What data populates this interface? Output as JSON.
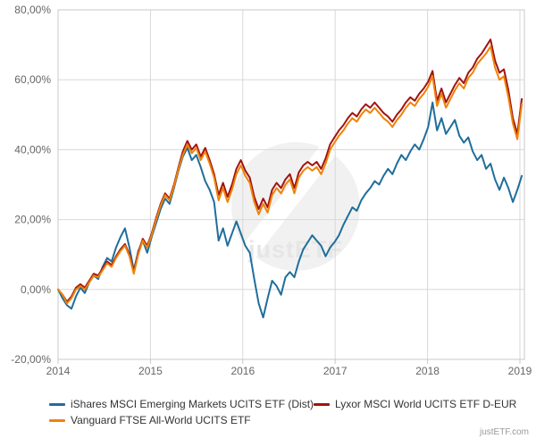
{
  "chart_data": {
    "type": "line",
    "title": "",
    "xlabel": "",
    "ylabel": "",
    "x_start": 2014,
    "x_end": 2019.02,
    "ylim": [
      -20,
      80
    ],
    "grid": true,
    "legend_position": "bottom",
    "y_ticks": [
      {
        "v": 80,
        "label": "80,00%"
      },
      {
        "v": 60,
        "label": "60,00%"
      },
      {
        "v": 40,
        "label": "40,00%"
      },
      {
        "v": 20,
        "label": "20,00%"
      },
      {
        "v": 0,
        "label": "0,00%"
      },
      {
        "v": -20,
        "label": "-20,00%"
      }
    ],
    "x_ticks": [
      {
        "v": 2014,
        "label": "2014"
      },
      {
        "v": 2015,
        "label": "2015"
      },
      {
        "v": 2016,
        "label": "2016"
      },
      {
        "v": 2017,
        "label": "2017"
      },
      {
        "v": 2018,
        "label": "2018"
      },
      {
        "v": 2019,
        "label": "2019"
      }
    ],
    "series": [
      {
        "name": "iShares MSCI Emerging Markets UCITS ETF (Dist)",
        "color": "#1F6E9C",
        "values": [
          0,
          -2.5,
          -4.5,
          -5.5,
          -2,
          0.5,
          -1,
          2,
          4,
          3,
          6.5,
          9,
          8,
          12,
          15,
          17.5,
          12,
          5.5,
          11,
          14,
          10.5,
          15,
          19,
          23,
          26,
          24.5,
          29,
          34,
          38,
          40.5,
          37,
          38.5,
          35,
          31,
          28.5,
          25,
          14,
          17.5,
          12.5,
          16,
          19.5,
          16,
          12.5,
          10.5,
          3,
          -4,
          -8,
          -2.5,
          2.5,
          1,
          -1.5,
          3.5,
          5,
          3.5,
          8,
          11.5,
          13.5,
          15.5,
          14,
          12.5,
          9.5,
          12,
          13.5,
          15.5,
          18.5,
          21,
          23.5,
          22.5,
          25.5,
          27.5,
          29,
          31,
          30,
          32.5,
          34.5,
          33,
          36,
          38.5,
          37,
          39.5,
          41.5,
          40,
          43,
          46.5,
          53.5,
          45.5,
          49,
          44.5,
          46.5,
          48.5,
          44,
          42,
          43.5,
          39.5,
          37,
          38.5,
          34.5,
          36,
          31.5,
          28.5,
          32,
          29,
          25,
          28.5,
          32.5
        ]
      },
      {
        "name": "Lyxor MSCI World UCITS ETF D-EUR",
        "color": "#A21410",
        "values": [
          0,
          -1.5,
          -3.5,
          -2,
          0.5,
          1.5,
          0.5,
          2.5,
          4.5,
          4,
          6,
          8,
          7,
          9.5,
          11.5,
          13,
          10,
          5,
          10.5,
          14.5,
          12.5,
          16,
          20.5,
          24.5,
          27.5,
          26,
          30,
          35,
          39.5,
          42.5,
          40,
          41.5,
          38,
          40.5,
          37,
          33,
          27,
          30.5,
          26.5,
          30,
          34.5,
          37,
          34,
          32,
          26.5,
          23,
          26,
          23.5,
          28.5,
          30.5,
          29,
          31.5,
          33,
          29,
          33.5,
          35.5,
          36.5,
          35.5,
          36.5,
          34.5,
          37.5,
          41.5,
          43.5,
          45.5,
          47,
          49,
          50.5,
          49.5,
          51.5,
          53,
          52,
          53.5,
          52,
          50.5,
          49.5,
          48,
          50,
          51.5,
          53.5,
          55,
          54,
          56,
          57.5,
          59.5,
          62.5,
          54,
          57.5,
          53.5,
          56,
          58.5,
          60.5,
          59,
          62,
          63.5,
          66,
          67.5,
          69.5,
          71.5,
          65.5,
          62,
          63,
          57,
          49,
          44.5,
          54.5
        ]
      },
      {
        "name": "Vanguard FTSE All-World UCITS ETF",
        "color": "#EE8308",
        "values": [
          0,
          -1.5,
          -4,
          -2.5,
          0,
          1,
          0,
          2,
          4,
          3.5,
          5.5,
          7.5,
          6.5,
          9,
          11,
          12.5,
          9.5,
          4.5,
          10,
          14,
          12,
          15.5,
          20,
          24,
          27,
          25.5,
          29.5,
          34.5,
          38.5,
          41.5,
          39,
          40.5,
          37,
          39.5,
          36,
          32,
          25.5,
          29,
          25,
          28.5,
          33,
          35.5,
          32.5,
          30.5,
          25,
          21.5,
          24.5,
          22,
          27,
          29,
          27.5,
          30,
          31.5,
          27.5,
          32,
          34,
          35,
          34,
          35,
          33,
          36,
          40,
          42,
          44,
          45.5,
          47.5,
          49,
          48,
          50,
          51.5,
          50.5,
          52,
          50.5,
          49,
          48,
          46.5,
          48.5,
          50,
          52,
          53.5,
          52.5,
          54.5,
          56,
          58,
          61,
          52.5,
          56,
          52,
          54.5,
          57,
          59,
          57.5,
          60.5,
          62,
          64.5,
          66,
          67.5,
          69.5,
          63.5,
          60,
          61,
          55,
          47.5,
          43,
          53
        ]
      }
    ]
  },
  "legend": {
    "items": [
      {
        "label": "iShares MSCI Emerging Markets UCITS ETF (Dist)",
        "color": "#1F6E9C"
      },
      {
        "label": "Lyxor MSCI World UCITS ETF D-EUR",
        "color": "#A21410"
      },
      {
        "label": "Vanguard FTSE All-World UCITS ETF",
        "color": "#EE8308"
      }
    ]
  },
  "watermark": {
    "text": "justETF"
  },
  "footer": {
    "text": "justETF.com"
  },
  "colors": {
    "grid": "#D8D8D8",
    "border": "#C8C8C8",
    "axis_text": "#666666",
    "legend_text": "#333333",
    "watermark_disc": "#F1F1F1",
    "watermark_text": "#E6E6E6"
  }
}
